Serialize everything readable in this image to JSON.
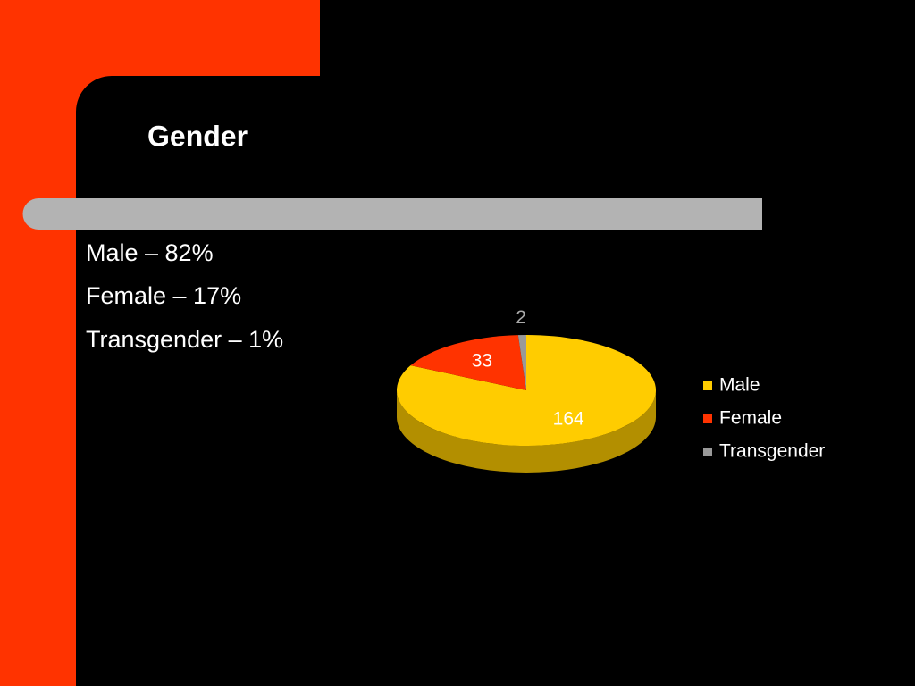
{
  "title": "Gender",
  "bullets": [
    "Male – 82%",
    "Female – 17%",
    "Transgender – 1%"
  ],
  "chart_data": {
    "type": "pie",
    "categories": [
      "Male",
      "Female",
      "Transgender"
    ],
    "values": [
      164,
      33,
      2
    ],
    "colors": [
      "#ffcc00",
      "#ff3300",
      "#999999"
    ],
    "legend": "right"
  }
}
